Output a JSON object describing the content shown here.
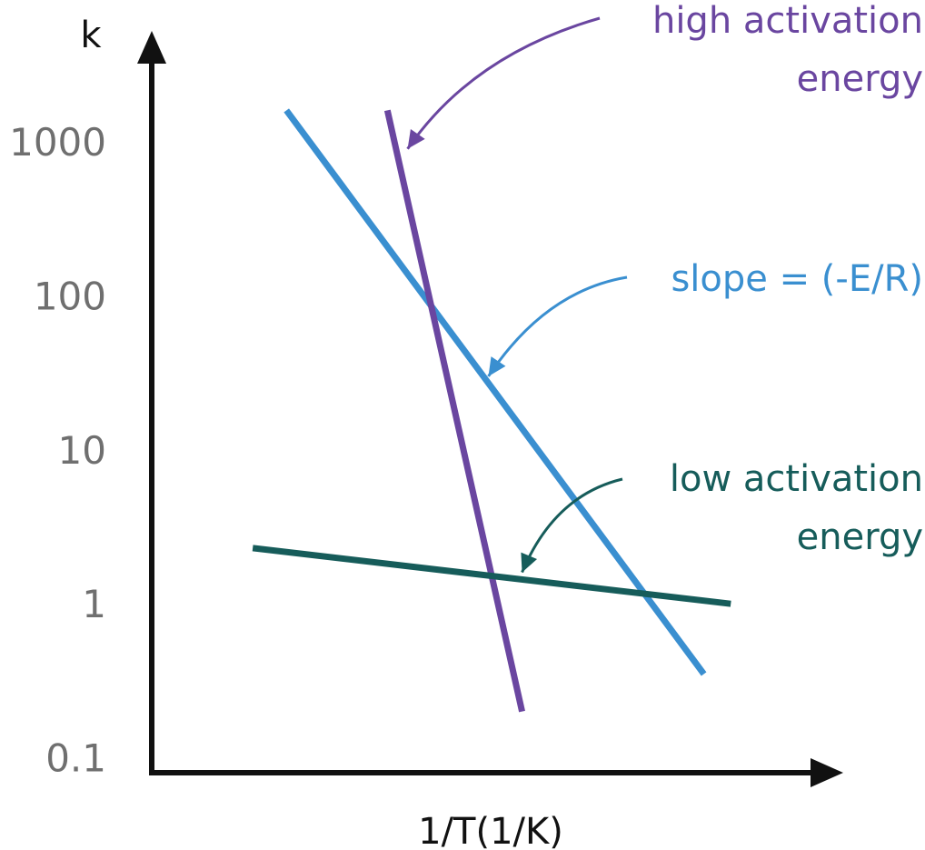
{
  "chart_data": {
    "type": "line",
    "x_label": "1/T(1/K)",
    "y_label": "k",
    "y_scale": "log",
    "y_ticks": [
      {
        "value": 1000,
        "label": "1000"
      },
      {
        "value": 100,
        "label": "100"
      },
      {
        "value": 10,
        "label": "10"
      },
      {
        "value": 1,
        "label": "1"
      },
      {
        "value": 0.1,
        "label": "0.1"
      }
    ],
    "ylim": [
      0.08,
      4000
    ],
    "xlim": [
      0,
      1
    ],
    "series": [
      {
        "color": "#3a8fd0",
        "x": [
          0.2,
          0.82
        ],
        "y": [
          1600,
          0.35
        ]
      },
      {
        "color": "#6a46a0",
        "x": [
          0.35,
          0.55
        ],
        "y": [
          1600,
          0.2
        ]
      },
      {
        "color": "#165c5a",
        "x": [
          0.15,
          0.86
        ],
        "y": [
          2.3,
          1.0
        ]
      }
    ],
    "annotations": [
      {
        "lines": [
          "high activation",
          "energy"
        ],
        "color": "#6a46a0",
        "points_to": {
          "x": 0.38,
          "y": 900
        }
      },
      {
        "lines": [
          "slope = (-E/R)"
        ],
        "color": "#3a8fd0",
        "points_to": {
          "x": 0.5,
          "y": 30
        }
      },
      {
        "lines": [
          "low activation",
          "energy"
        ],
        "color": "#165c5a",
        "points_to": {
          "x": 0.55,
          "y": 1.6
        }
      }
    ],
    "grid": false,
    "legend": "none"
  }
}
